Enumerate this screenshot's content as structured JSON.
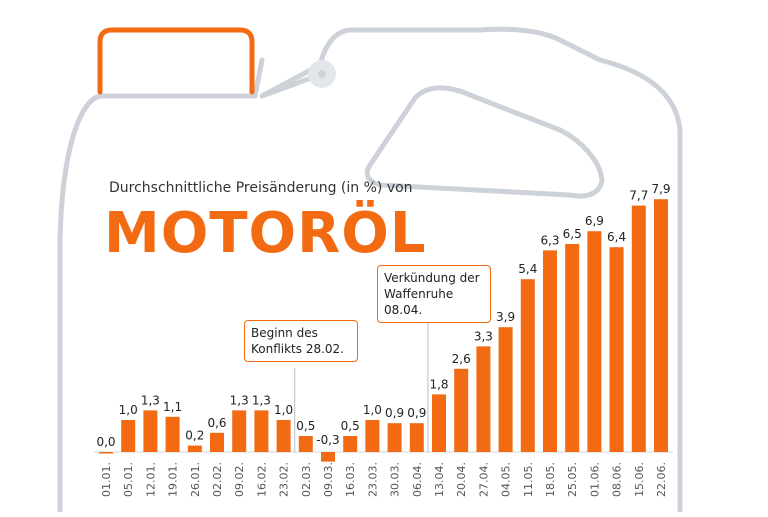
{
  "header": {
    "subtitle": "Durchschnittliche Preisänderung (in %) von",
    "title": "MOTORÖL"
  },
  "annotations": [
    {
      "text": "Beginn des Konflikts 28.02."
    },
    {
      "text": "Verkündung der Waffenruhe 08.04."
    }
  ],
  "colors": {
    "accent": "#f26a12",
    "outline": "#ccd2d8",
    "axis": "#cfd4da"
  },
  "chart_data": {
    "type": "bar",
    "title": "MOTORÖL",
    "subtitle": "Durchschnittliche Preisänderung (in %) von",
    "categories": [
      "01.01.",
      "05.01.",
      "12.01.",
      "19.01.",
      "26.01.",
      "02.02.",
      "09.02.",
      "16.02.",
      "23.02.",
      "02.03.",
      "09.03.",
      "16.03.",
      "23.03.",
      "30.03.",
      "06.04.",
      "13.04.",
      "20.04.",
      "27.04.",
      "04.05.",
      "11.05.",
      "18.05.",
      "25.05.",
      "01.06.",
      "08.06.",
      "15.06.",
      "22.06."
    ],
    "values": [
      0.0,
      1.0,
      1.3,
      1.1,
      0.2,
      0.6,
      1.3,
      1.3,
      1.0,
      0.5,
      -0.3,
      0.5,
      1.0,
      0.9,
      0.9,
      1.8,
      2.6,
      3.3,
      3.9,
      5.4,
      6.3,
      6.5,
      6.9,
      6.4,
      7.7,
      7.9
    ],
    "labels": [
      "0,0",
      "1,0",
      "1,3",
      "1,1",
      "0,2",
      "0,6",
      "1,3",
      "1,3",
      "1,0",
      "0,5",
      "-0,3",
      "0,5",
      "1,0",
      "0,9",
      "0,9",
      "1,8",
      "2,6",
      "3,3",
      "3,9",
      "5,4",
      "6,3",
      "6,5",
      "6,9",
      "6,4",
      "7,7",
      "7,9"
    ],
    "xlabel": "",
    "ylabel": "",
    "grid": false,
    "event_markers": [
      {
        "category": "23.02.",
        "label": "Beginn des Konflikts 28.02."
      },
      {
        "category": "06.04.",
        "label": "Verkündung der Waffenruhe 08.04."
      }
    ]
  }
}
